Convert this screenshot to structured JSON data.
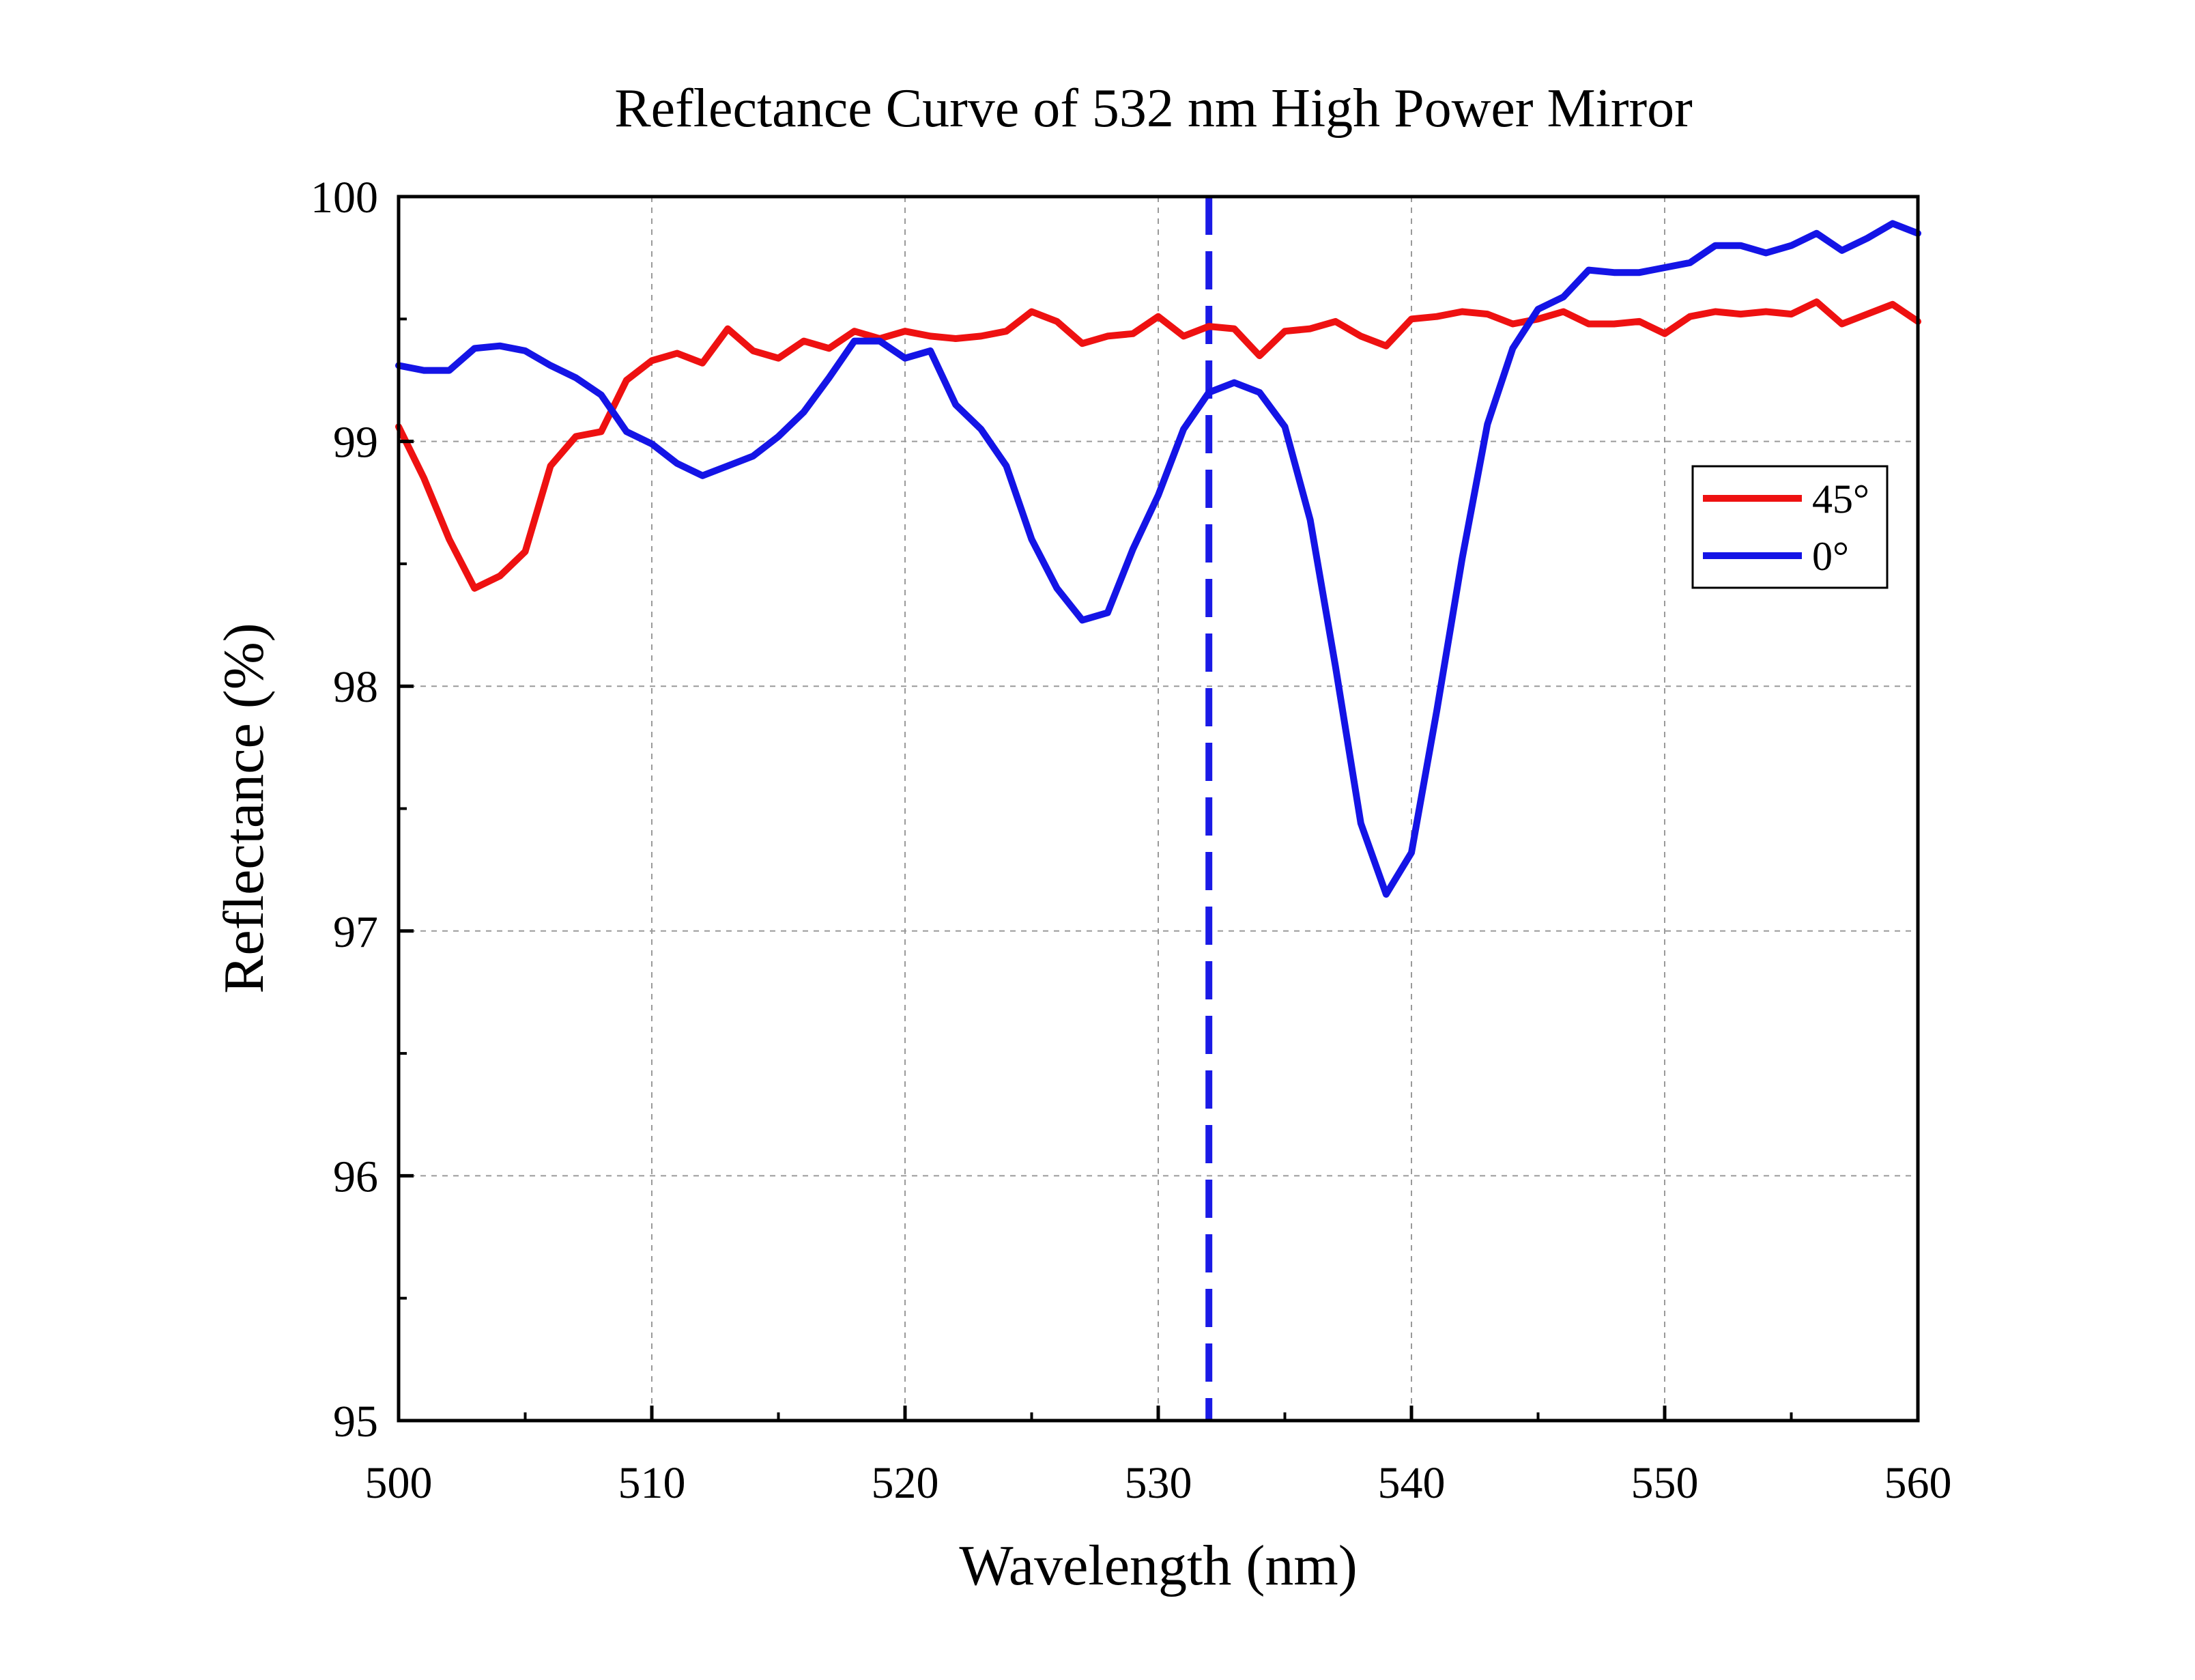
{
  "chart_data": {
    "type": "line",
    "title": "Reflectance Curve of 532 nm High Power Mirror",
    "xlabel": "Wavelength (nm)",
    "ylabel": "Reflectance (%)",
    "xlim": [
      500,
      560
    ],
    "ylim": [
      95,
      100
    ],
    "xticks": [
      "500",
      "510",
      "520",
      "530",
      "540",
      "550",
      "560"
    ],
    "yticks": [
      "95",
      "96",
      "97",
      "98",
      "99",
      "100"
    ],
    "grid": true,
    "legend_position": "right",
    "reference_line": {
      "x": 532,
      "style": "dashed",
      "color": "#1a1ae6"
    },
    "x": [
      500,
      501,
      502,
      503,
      504,
      505,
      506,
      507,
      508,
      509,
      510,
      511,
      512,
      513,
      514,
      515,
      516,
      517,
      518,
      519,
      520,
      521,
      522,
      523,
      524,
      525,
      526,
      527,
      528,
      529,
      530,
      531,
      532,
      533,
      534,
      535,
      536,
      537,
      538,
      539,
      540,
      541,
      542,
      543,
      544,
      545,
      546,
      547,
      548,
      549,
      550,
      551,
      552,
      553,
      554,
      555,
      556,
      557,
      558,
      559,
      560
    ],
    "series": [
      {
        "name": "45°",
        "color": "#ee1111",
        "values": [
          99.06,
          98.85,
          98.6,
          98.4,
          98.45,
          98.55,
          98.9,
          99.02,
          99.04,
          99.25,
          99.33,
          99.36,
          99.32,
          99.46,
          99.37,
          99.34,
          99.41,
          99.38,
          99.45,
          99.42,
          99.45,
          99.43,
          99.42,
          99.43,
          99.45,
          99.53,
          99.49,
          99.4,
          99.43,
          99.44,
          99.51,
          99.43,
          99.47,
          99.46,
          99.35,
          99.45,
          99.46,
          99.49,
          99.43,
          99.39,
          99.5,
          99.51,
          99.53,
          99.52,
          99.48,
          99.5,
          99.53,
          99.48,
          99.48,
          99.49,
          99.44,
          99.51,
          99.53,
          99.52,
          99.53,
          99.52,
          99.57,
          99.48,
          99.52,
          99.56,
          99.49
        ]
      },
      {
        "name": "0°",
        "color": "#1414e6",
        "values": [
          99.31,
          99.29,
          99.29,
          99.38,
          99.39,
          99.37,
          99.31,
          99.26,
          99.19,
          99.04,
          98.99,
          98.91,
          98.86,
          98.9,
          98.94,
          99.02,
          99.12,
          99.26,
          99.41,
          99.41,
          99.34,
          99.37,
          99.15,
          99.05,
          98.9,
          98.6,
          98.4,
          98.27,
          98.3,
          98.56,
          98.78,
          99.05,
          99.2,
          99.24,
          99.2,
          99.06,
          98.68,
          98.08,
          97.44,
          97.15,
          97.32,
          97.9,
          98.52,
          99.07,
          99.38,
          99.54,
          99.59,
          99.7,
          99.69,
          99.69,
          99.71,
          99.73,
          99.8,
          99.8,
          99.77,
          99.8,
          99.85,
          99.78,
          99.83,
          99.89,
          99.85
        ]
      }
    ]
  }
}
